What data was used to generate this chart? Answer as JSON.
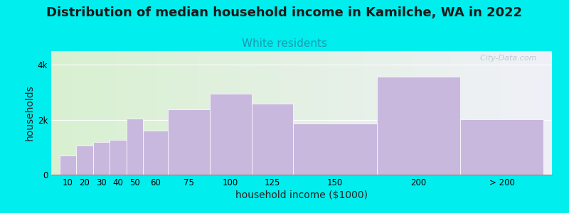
{
  "title": "Distribution of median household income in Kamilche, WA in 2022",
  "subtitle": "White residents",
  "xlabel": "household income ($1000)",
  "ylabel": "households",
  "background_color": "#00EEEE",
  "plot_bg_color_left": "#d8f0d0",
  "plot_bg_color_right": "#f0f0f8",
  "bar_color": "#c9b8de",
  "bar_edge_color": "#ffffff",
  "categories": [
    "10",
    "20",
    "30",
    "40",
    "50",
    "60",
    "75",
    "100",
    "125",
    "150",
    "200",
    "> 200"
  ],
  "values": [
    700,
    1050,
    1200,
    1280,
    2050,
    1600,
    2380,
    2950,
    2580,
    1850,
    3580,
    2020
  ],
  "x_positions": [
    10,
    20,
    30,
    40,
    50,
    60,
    75,
    100,
    125,
    150,
    200,
    250
  ],
  "widths": [
    10,
    10,
    10,
    10,
    10,
    15,
    25,
    25,
    25,
    50,
    50,
    50
  ],
  "ylim": [
    0,
    4500
  ],
  "ytick_values": [
    0,
    2000,
    4000
  ],
  "ytick_labels": [
    "0",
    "2k",
    "4k"
  ],
  "title_fontsize": 13,
  "subtitle_fontsize": 11,
  "subtitle_color": "#1a9ab0",
  "watermark_text": "  City-Data.com",
  "watermark_color": "#b0c4d0"
}
